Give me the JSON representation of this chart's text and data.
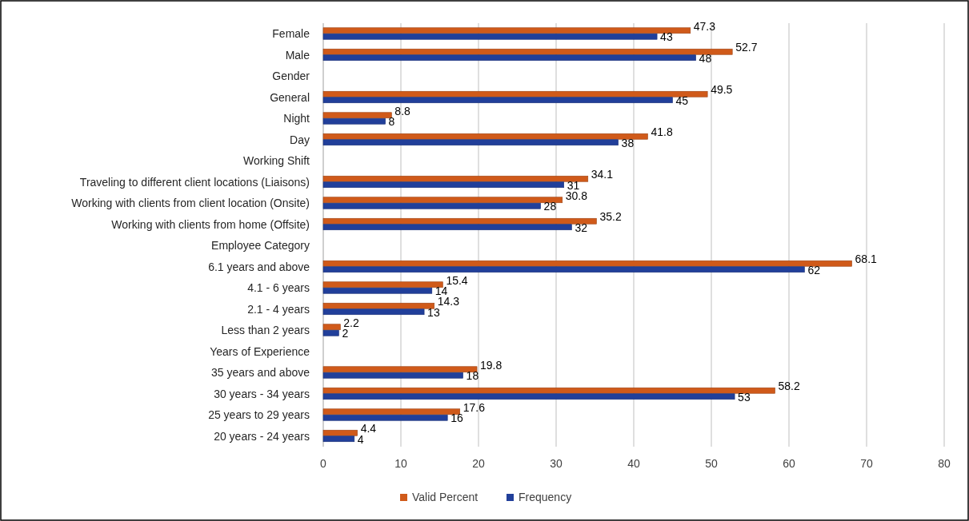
{
  "chart_data": {
    "type": "bar",
    "orientation": "horizontal",
    "categories": [
      "Female",
      "Male",
      "Gender",
      "General",
      "Night",
      "Day",
      "Working Shift",
      "Traveling to different client locations (Liaisons)",
      "Working with clients from client location (Onsite)",
      "Working with clients from home (Offsite)",
      "Employee Category",
      "6.1 years and above",
      "4.1 - 6 years",
      "2.1 - 4 years",
      "Less than 2 years",
      "Years of Experience",
      "35 years and above",
      "30 years - 34 years",
      "25 years to 29 years",
      "20 years - 24 years"
    ],
    "series": [
      {
        "name": "Valid Percent",
        "color": "#d05a1a",
        "values": [
          47.3,
          52.7,
          null,
          49.5,
          8.8,
          41.8,
          null,
          34.1,
          30.8,
          35.2,
          null,
          68.1,
          15.4,
          14.3,
          2.2,
          null,
          19.8,
          58.2,
          17.6,
          4.4
        ]
      },
      {
        "name": "Frequency",
        "color": "#213f9a",
        "values": [
          43,
          48,
          null,
          45,
          8,
          38,
          null,
          31,
          28,
          32,
          null,
          62,
          14,
          13,
          2,
          null,
          18,
          53,
          16,
          4
        ]
      }
    ],
    "xlim": [
      0,
      80
    ],
    "xticks": [
      0,
      10,
      20,
      30,
      40,
      50,
      60,
      70,
      80
    ],
    "grid": "x",
    "legend": "bottom",
    "data_labels": true
  }
}
